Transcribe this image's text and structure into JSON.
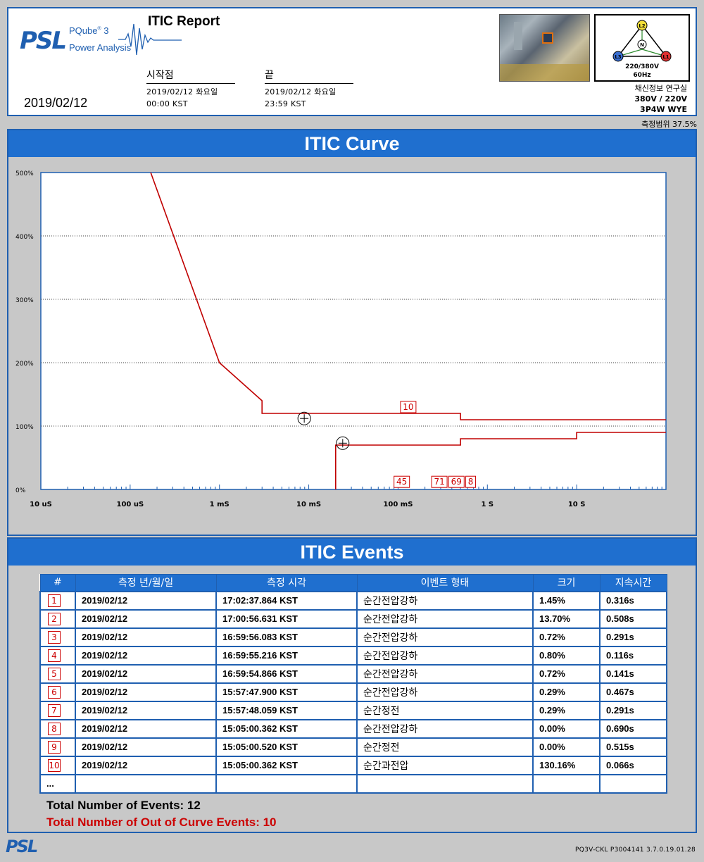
{
  "header": {
    "logo_text": "PSL",
    "product_line1": "PQube",
    "product_sup": "®",
    "product_num": "3",
    "product_line2": "Power Analysis",
    "report_title": "ITIC Report",
    "start_label": "시작점",
    "start_date": "2019/02/12 화요일",
    "start_time": "00:00 KST",
    "end_label": "끝",
    "end_date": "2019/02/12 화요일",
    "end_time": "23:59 KST",
    "report_date": "2019/02/12",
    "wiring_voltage": "220/380V",
    "wiring_freq": "60Hz",
    "site_name": "채신정보 연구실",
    "nominal_voltage": "380V / 220V",
    "wiring_type": "3P4W WYE",
    "phase_labels": [
      "L1",
      "L2",
      "L3",
      "N"
    ]
  },
  "measurement_range": "측정범위 37.5%",
  "curve_section_title": "ITIC Curve",
  "events_section_title": "ITIC Events",
  "chart_data": {
    "type": "line",
    "title": "",
    "x_scale": "log",
    "x_ticks": [
      "10 uS",
      "100 uS",
      "1 mS",
      "10 mS",
      "100 mS",
      "1 S",
      "10 S"
    ],
    "y_ticks": [
      "0%",
      "100%",
      "200%",
      "300%",
      "400%",
      "500%"
    ],
    "xlim_seconds": [
      1e-05,
      100
    ],
    "ylim_percent": [
      0,
      500
    ],
    "grid": true,
    "series": [
      {
        "name": "",
        "color": "#c00000",
        "points": [
          [
            0.00017,
            500
          ],
          [
            0.001,
            200
          ],
          [
            0.003,
            140
          ],
          [
            0.003,
            120
          ],
          [
            0.5,
            120
          ],
          [
            0.5,
            110
          ],
          [
            100,
            110
          ]
        ]
      },
      {
        "name": "",
        "color": "#c00000",
        "points": [
          [
            0.02,
            0
          ],
          [
            0.02,
            70
          ],
          [
            0.5,
            70
          ],
          [
            0.5,
            80
          ],
          [
            10,
            80
          ],
          [
            10,
            90
          ],
          [
            100,
            90
          ]
        ]
      }
    ],
    "markers": [
      {
        "type": "crosshair",
        "x": 0.0089,
        "y": 112
      },
      {
        "type": "crosshair",
        "x": 0.024,
        "y": 73
      }
    ],
    "event_labels": [
      {
        "label": "10",
        "x": 0.13,
        "y": 130
      },
      {
        "label": "45",
        "x": 0.11,
        "y": 12
      },
      {
        "label": "71",
        "x": 0.29,
        "y": 12
      },
      {
        "label": "69",
        "x": 0.45,
        "y": 12
      },
      {
        "label": "8",
        "x": 0.65,
        "y": 12
      }
    ]
  },
  "table": {
    "headers": [
      "#",
      "측정 년/월/일",
      "측정 시각",
      "이벤트 형태",
      "크기",
      "지속시간"
    ],
    "rows": [
      {
        "num": "1",
        "date": "2019/02/12",
        "time": "17:02:37.864 KST",
        "type": "순간전압강하",
        "mag": "1.45%",
        "dur": "0.316s"
      },
      {
        "num": "2",
        "date": "2019/02/12",
        "time": "17:00:56.631 KST",
        "type": "순간전압강하",
        "mag": "13.70%",
        "dur": "0.508s"
      },
      {
        "num": "3",
        "date": "2019/02/12",
        "time": "16:59:56.083 KST",
        "type": "순간전압강하",
        "mag": "0.72%",
        "dur": "0.291s"
      },
      {
        "num": "4",
        "date": "2019/02/12",
        "time": "16:59:55.216 KST",
        "type": "순간전압강하",
        "mag": "0.80%",
        "dur": "0.116s"
      },
      {
        "num": "5",
        "date": "2019/02/12",
        "time": "16:59:54.866 KST",
        "type": "순간전압강하",
        "mag": "0.72%",
        "dur": "0.141s"
      },
      {
        "num": "6",
        "date": "2019/02/12",
        "time": "15:57:47.900 KST",
        "type": "순간전압강하",
        "mag": "0.29%",
        "dur": "0.467s"
      },
      {
        "num": "7",
        "date": "2019/02/12",
        "time": "15:57:48.059 KST",
        "type": "순간정전",
        "mag": "0.29%",
        "dur": "0.291s"
      },
      {
        "num": "8",
        "date": "2019/02/12",
        "time": "15:05:00.362 KST",
        "type": "순간전압강하",
        "mag": "0.00%",
        "dur": "0.690s"
      },
      {
        "num": "9",
        "date": "2019/02/12",
        "time": "15:05:00.520 KST",
        "type": "순간정전",
        "mag": "0.00%",
        "dur": "0.515s"
      },
      {
        "num": "10",
        "date": "2019/02/12",
        "time": "15:05:00.362 KST",
        "type": "순간과전압",
        "mag": "130.16%",
        "dur": "0.066s"
      }
    ],
    "ellipsis": "..."
  },
  "totals": {
    "events": "Total Number of Events: 12",
    "out_of_curve": "Total Number of Out of Curve Events: 10"
  },
  "footer": {
    "logo": "PSL",
    "version": "PQ3V-CKL   P3004141  3.7.0.19.01.28"
  },
  "colors": {
    "accent": "#1f6fcf",
    "curve": "#c00000"
  }
}
